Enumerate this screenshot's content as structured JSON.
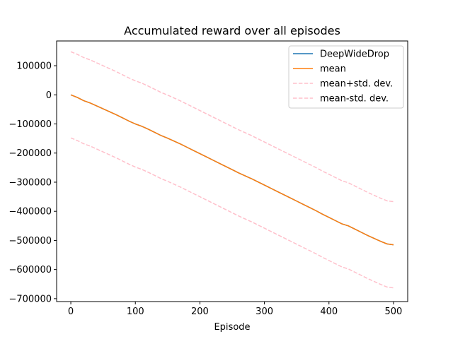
{
  "chart_data": {
    "type": "line",
    "title": "Accumulated reward over all episodes",
    "xlabel": "Episode",
    "ylabel": "",
    "xlim": [
      -22,
      522
    ],
    "ylim": [
      -710000,
      185000
    ],
    "xticks": [
      0,
      100,
      200,
      300,
      400,
      500
    ],
    "yticks": [
      100000,
      0,
      -100000,
      -200000,
      -300000,
      -400000,
      -500000,
      -600000,
      -700000
    ],
    "legend_position": "top-right",
    "grid": false,
    "series": [
      {
        "name": "DeepWideDrop",
        "color": "#1f77b4",
        "style": "solid",
        "x": [
          0,
          10,
          20,
          30,
          40,
          50,
          60,
          70,
          80,
          90,
          100,
          110,
          120,
          130,
          140,
          150,
          160,
          170,
          180,
          190,
          200,
          210,
          220,
          230,
          240,
          250,
          260,
          270,
          280,
          290,
          300,
          310,
          320,
          330,
          340,
          350,
          360,
          370,
          380,
          390,
          400,
          410,
          420,
          430,
          440,
          450,
          460,
          470,
          480,
          490,
          500
        ],
        "y": [
          0,
          -9000,
          -20000,
          -28000,
          -38000,
          -48000,
          -58000,
          -68000,
          -79000,
          -90000,
          -100000,
          -108000,
          -118000,
          -129000,
          -140000,
          -149000,
          -159000,
          -169000,
          -180000,
          -191000,
          -202000,
          -213000,
          -224000,
          -235000,
          -246000,
          -257000,
          -268000,
          -278000,
          -288000,
          -299000,
          -310000,
          -321000,
          -332000,
          -343000,
          -354000,
          -365000,
          -376000,
          -387000,
          -398000,
          -410000,
          -421000,
          -432000,
          -443000,
          -450000,
          -461000,
          -472000,
          -483000,
          -493000,
          -503000,
          -512000,
          -515000
        ]
      },
      {
        "name": "mean",
        "color": "#ff7f0e",
        "style": "solid",
        "x": [
          0,
          10,
          20,
          30,
          40,
          50,
          60,
          70,
          80,
          90,
          100,
          110,
          120,
          130,
          140,
          150,
          160,
          170,
          180,
          190,
          200,
          210,
          220,
          230,
          240,
          250,
          260,
          270,
          280,
          290,
          300,
          310,
          320,
          330,
          340,
          350,
          360,
          370,
          380,
          390,
          400,
          410,
          420,
          430,
          440,
          450,
          460,
          470,
          480,
          490,
          500
        ],
        "y": [
          0,
          -9000,
          -20000,
          -28000,
          -38000,
          -48000,
          -58000,
          -68000,
          -79000,
          -90000,
          -100000,
          -108000,
          -118000,
          -129000,
          -140000,
          -149000,
          -159000,
          -169000,
          -180000,
          -191000,
          -202000,
          -213000,
          -224000,
          -235000,
          -246000,
          -257000,
          -268000,
          -278000,
          -288000,
          -299000,
          -310000,
          -321000,
          -332000,
          -343000,
          -354000,
          -365000,
          -376000,
          -387000,
          -398000,
          -410000,
          -421000,
          -432000,
          -443000,
          -450000,
          -461000,
          -472000,
          -483000,
          -493000,
          -503000,
          -512000,
          -515000
        ]
      },
      {
        "name": "mean+std. dev.",
        "color": "#ffc0cb",
        "style": "dashed",
        "x": [
          0,
          10,
          20,
          30,
          40,
          50,
          60,
          70,
          80,
          90,
          100,
          110,
          120,
          130,
          140,
          150,
          160,
          170,
          180,
          190,
          200,
          210,
          220,
          230,
          240,
          250,
          260,
          270,
          280,
          290,
          300,
          310,
          320,
          330,
          340,
          350,
          360,
          370,
          380,
          390,
          400,
          410,
          420,
          430,
          440,
          450,
          460,
          470,
          480,
          490,
          500
        ],
        "y": [
          148000,
          139000,
          128000,
          120000,
          110000,
          100000,
          90000,
          80000,
          69000,
          58000,
          48000,
          40000,
          30000,
          19000,
          8000,
          -1000,
          -11000,
          -21000,
          -32000,
          -43000,
          -54000,
          -65000,
          -76000,
          -87000,
          -98000,
          -109000,
          -120000,
          -130000,
          -140000,
          -151000,
          -162000,
          -173000,
          -184000,
          -195000,
          -206000,
          -217000,
          -228000,
          -239000,
          -250000,
          -262000,
          -273000,
          -284000,
          -295000,
          -302000,
          -313000,
          -324000,
          -335000,
          -345000,
          -355000,
          -364000,
          -367000
        ]
      },
      {
        "name": "mean-std. dev.",
        "color": "#ffc0cb",
        "style": "dashed",
        "x": [
          0,
          10,
          20,
          30,
          40,
          50,
          60,
          70,
          80,
          90,
          100,
          110,
          120,
          130,
          140,
          150,
          160,
          170,
          180,
          190,
          200,
          210,
          220,
          230,
          240,
          250,
          260,
          270,
          280,
          290,
          300,
          310,
          320,
          330,
          340,
          350,
          360,
          370,
          380,
          390,
          400,
          410,
          420,
          430,
          440,
          450,
          460,
          470,
          480,
          490,
          500
        ],
        "y": [
          -148000,
          -157000,
          -168000,
          -176000,
          -186000,
          -196000,
          -206000,
          -216000,
          -227000,
          -238000,
          -248000,
          -256000,
          -266000,
          -277000,
          -288000,
          -297000,
          -307000,
          -317000,
          -328000,
          -339000,
          -350000,
          -361000,
          -372000,
          -383000,
          -394000,
          -405000,
          -416000,
          -426000,
          -436000,
          -447000,
          -458000,
          -469000,
          -480000,
          -491000,
          -502000,
          -513000,
          -524000,
          -535000,
          -546000,
          -558000,
          -569000,
          -580000,
          -591000,
          -598000,
          -609000,
          -620000,
          -631000,
          -641000,
          -651000,
          -660000,
          -663000
        ]
      }
    ]
  }
}
